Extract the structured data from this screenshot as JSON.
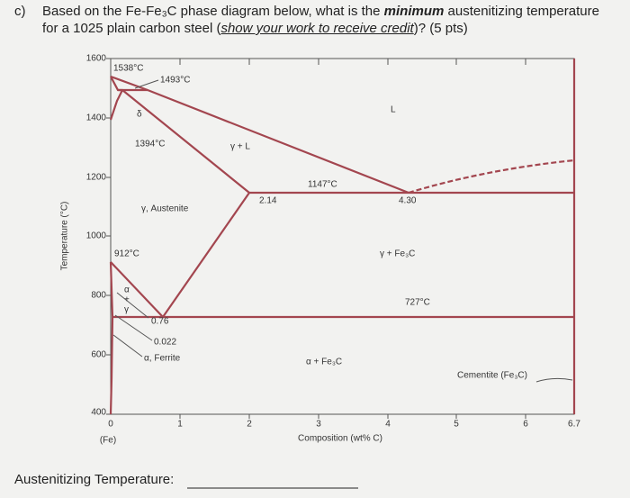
{
  "question": {
    "label": "c)",
    "runs": [
      "Based on the Fe-Fe₃C phase diagram below, what is the ",
      "minimum",
      " austenitizing temperature",
      "for a 1025 plain carbon steel (",
      "show your work to receive credit",
      ")? (5 pts)"
    ]
  },
  "figure": {
    "y_axis_title": "Temperature (°C)",
    "y_ticks": [
      "1600",
      "1400",
      "1200",
      "1000",
      "800",
      "600",
      "400"
    ],
    "x_ticks": [
      "0",
      "1",
      "2",
      "3",
      "4",
      "5",
      "6",
      "6.7"
    ],
    "x_origin_note": "(Fe)",
    "x_axis_title": "Composition (wt% C)",
    "labels": {
      "t1538": "1538°C",
      "t1493": "1493°C",
      "delta": "δ",
      "t1394": "1394°C",
      "gamma_l": "γ + L",
      "liquid": "L",
      "t1147": "1147°C",
      "c214": "2.14",
      "c430": "4.30",
      "austenite": "γ, Austenite",
      "t912": "912°C",
      "gamma_fe3c": "γ + Fe₃C",
      "t727": "727°C",
      "alpha_gamma": [
        "α",
        "+",
        "γ"
      ],
      "c076": "0.76",
      "c0022": "0.022",
      "ferrite": "α, Ferrite",
      "alpha_fe3c": "α + Fe₃C",
      "cementite": "Cementite (Fe₃C)"
    }
  },
  "answer_prompt": "Austenitizing Temperature:"
}
